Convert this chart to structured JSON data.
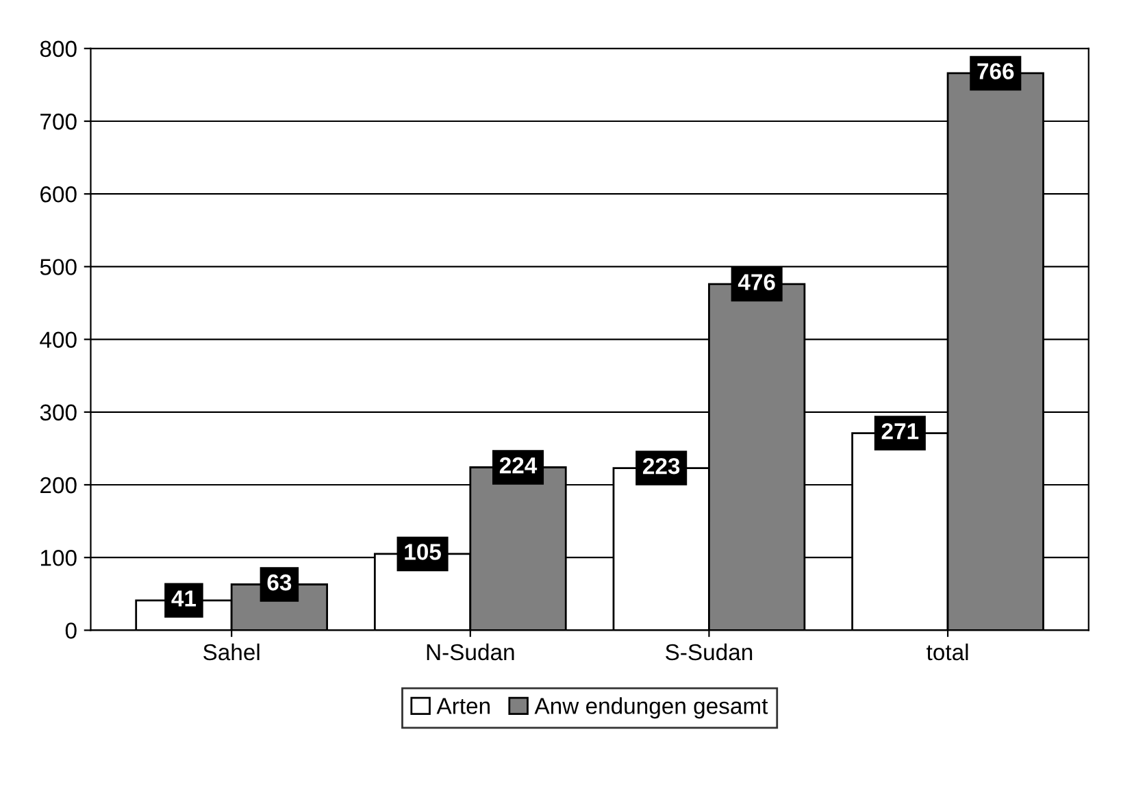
{
  "chart_data": {
    "type": "bar",
    "categories": [
      "Sahel",
      "N-Sudan",
      "S-Sudan",
      "total"
    ],
    "series": [
      {
        "name": "Arten",
        "color": "#ffffff",
        "values": [
          41,
          105,
          223,
          271
        ]
      },
      {
        "name": "Anw endungen gesamt",
        "color": "#808080",
        "values": [
          63,
          224,
          476,
          766
        ]
      }
    ],
    "ylim": [
      0,
      800
    ],
    "yticks": [
      0,
      100,
      200,
      300,
      400,
      500,
      600,
      700,
      800
    ],
    "grid": "y",
    "legend": "bottom",
    "data_labels": true
  }
}
